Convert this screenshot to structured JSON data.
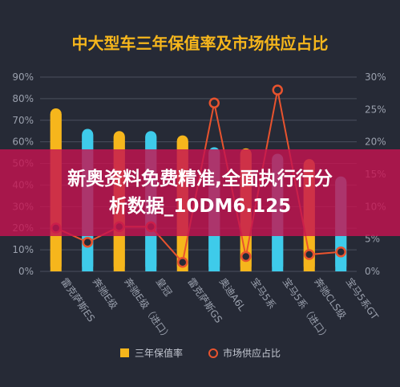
{
  "banner": {
    "line1": "新奥资料免费精准,全面执行行分",
    "line2": "析数据_10DM6.125"
  },
  "chart_data": {
    "type": "bar",
    "title": "中大型车三年保值率及市场供应占比",
    "categories": [
      "雷克萨斯ES",
      "奔驰E级",
      "奔驰E级（进口）",
      "皇冠",
      "雷克萨斯GS",
      "奥迪A6L",
      "宝马5系",
      "宝马5系（进口）",
      "奔驰CLS级",
      "宝马5系GT"
    ],
    "y_left": {
      "ticks": [
        "0%",
        "10%",
        "20%",
        "30%",
        "40%",
        "50%",
        "60%",
        "70%",
        "80%",
        "90%"
      ],
      "ylim": [
        0,
        90
      ]
    },
    "y_right": {
      "ticks": [
        "0%",
        "5%",
        "10%",
        "15%",
        "20%",
        "25%",
        "30%"
      ],
      "ylim": [
        0,
        30
      ]
    },
    "series": [
      {
        "name": "三年保值率",
        "type": "bar",
        "axis": "left",
        "values": [
          75.5,
          66,
          65,
          65,
          63,
          57.5,
          57,
          54.5,
          52,
          44
        ]
      },
      {
        "name": "市场供应占比",
        "type": "line",
        "axis": "right",
        "values": [
          6.7,
          4.5,
          6.9,
          6.9,
          1.4,
          26,
          2.3,
          28,
          2.6,
          3
        ]
      }
    ],
    "legend": "bottom",
    "colors": {
      "background": "#262a36",
      "bars": [
        "#f6b61c",
        "#3ecbea"
      ],
      "line": "#e8532e",
      "grid": "#4a4f5e",
      "tick": "#9aa0ad"
    }
  }
}
